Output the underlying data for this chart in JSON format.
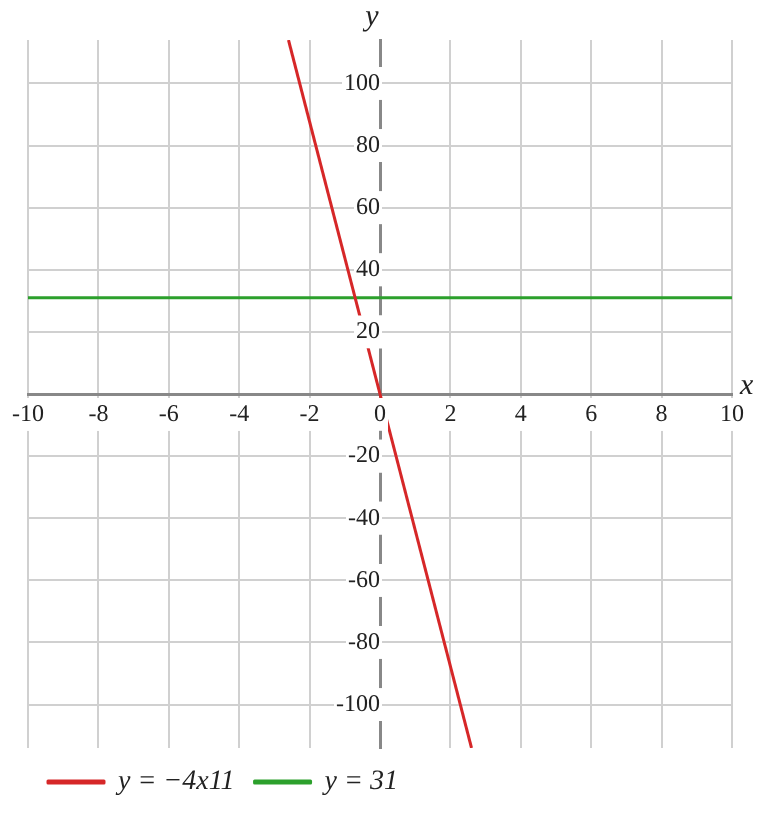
{
  "chart_data": {
    "type": "line",
    "xlabel": "x",
    "ylabel": "y",
    "xlim": [
      -10,
      10
    ],
    "xticks": [
      -10,
      -8,
      -6,
      -4,
      -2,
      0,
      2,
      4,
      6,
      8,
      10
    ],
    "ylim": [
      -114,
      114
    ],
    "yticks": [
      -100,
      -80,
      -60,
      -40,
      -20,
      20,
      40,
      60,
      80,
      100
    ],
    "grid": true,
    "legend": "bottom left",
    "marker": "none",
    "line_style": "solid",
    "series": [
      {
        "name": "y = −4x11",
        "color": "#d62728",
        "x": [
          -2.6,
          2.6
        ],
        "values": [
          114,
          -114
        ]
      },
      {
        "name": "y = 31",
        "color": "#2ca02c",
        "x": [
          -10,
          10
        ],
        "values": [
          31,
          31
        ]
      }
    ]
  }
}
